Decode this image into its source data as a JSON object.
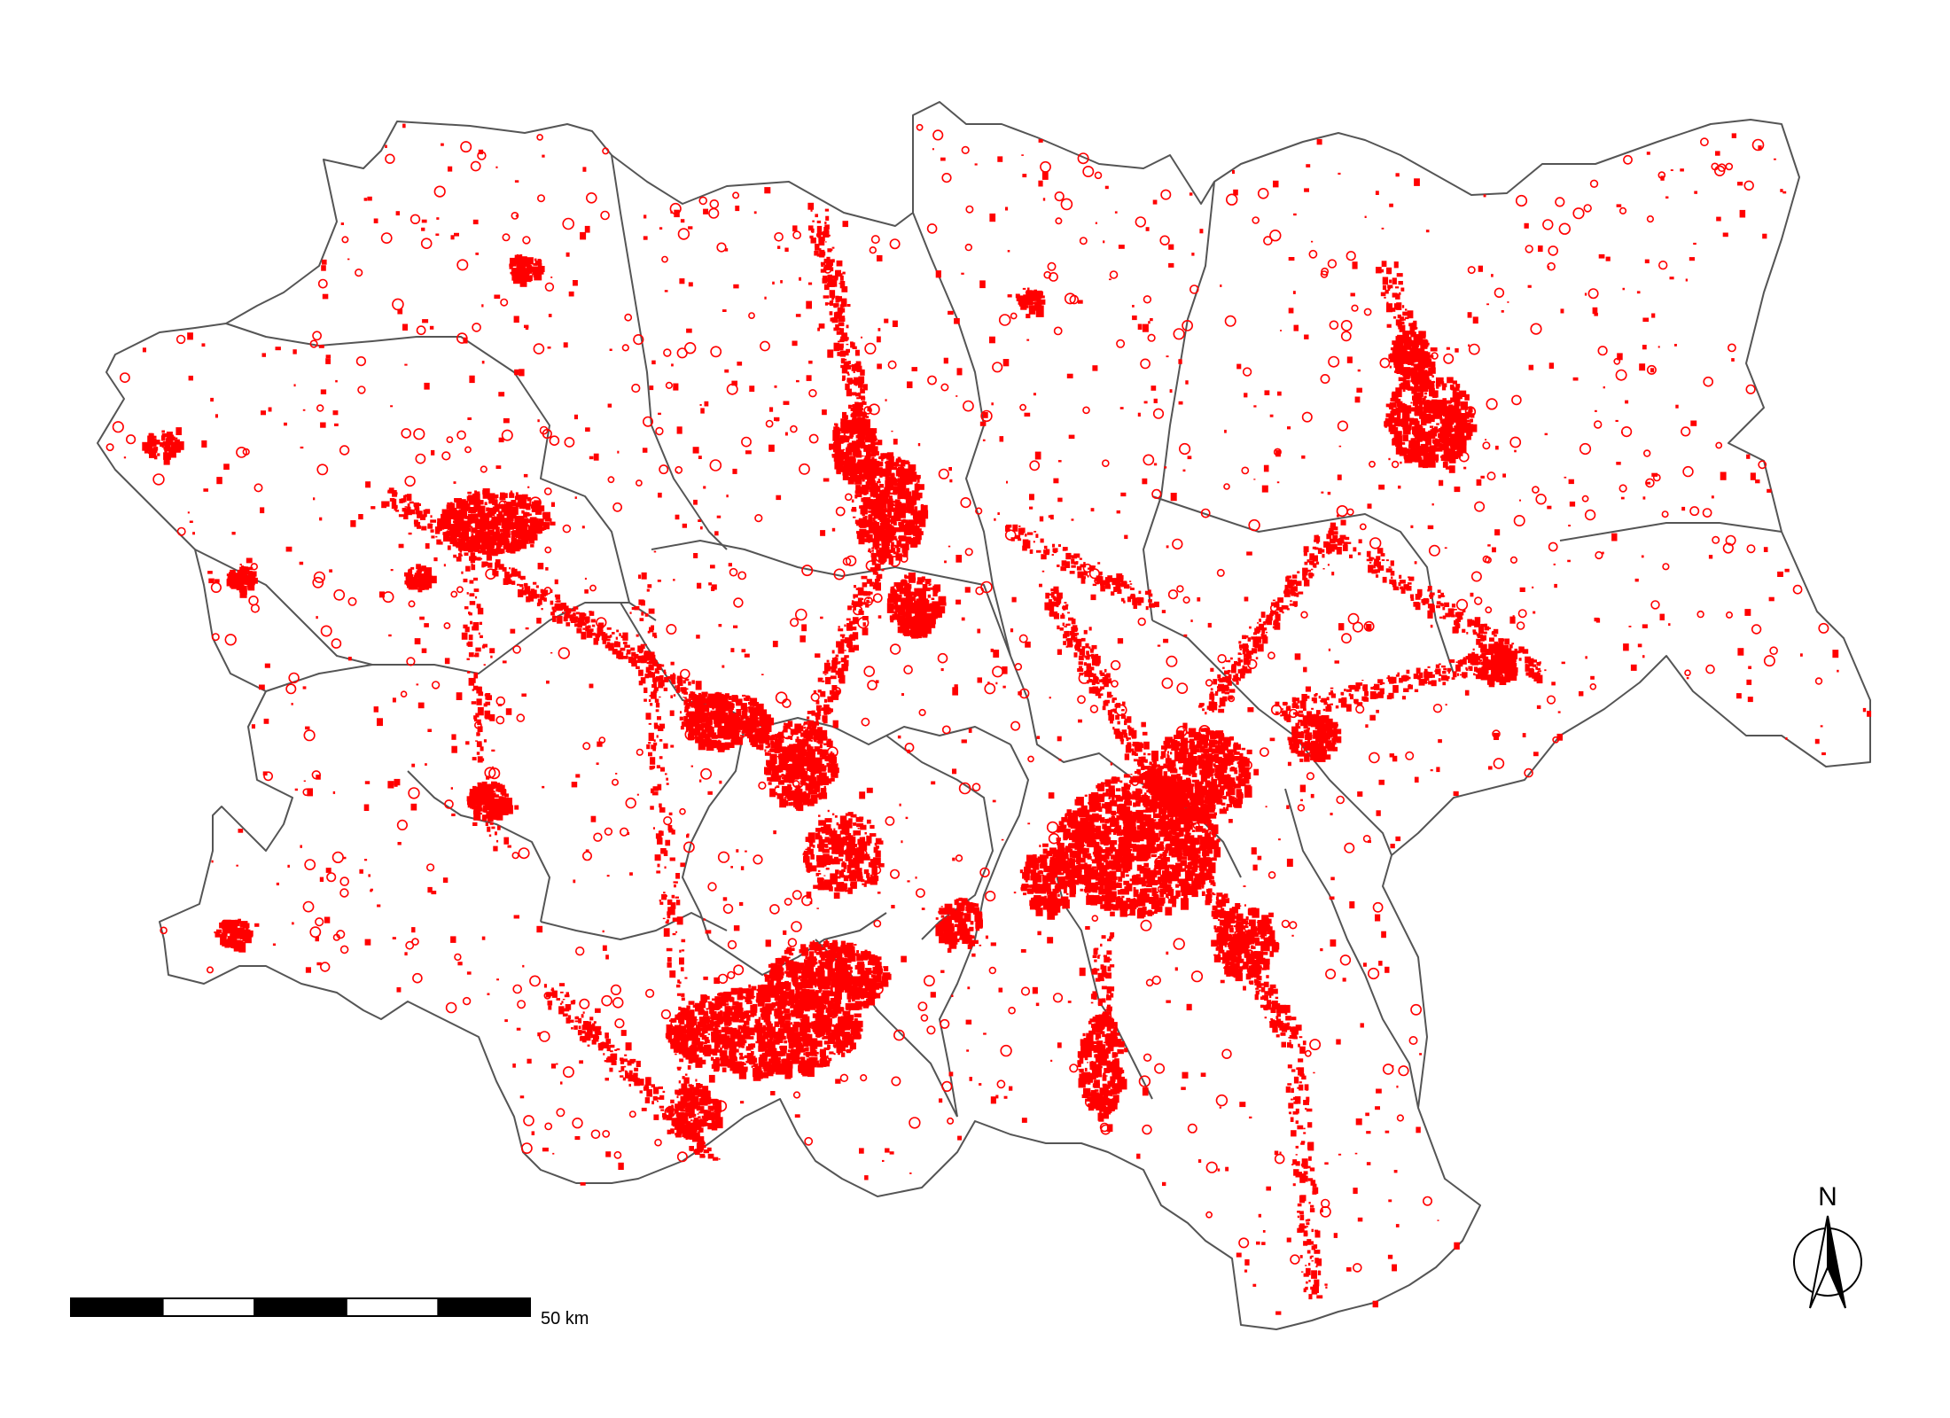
{
  "map": {
    "settlement_color": "#ff0000",
    "boundary_color": "#555555",
    "background_color": "#ffffff"
  },
  "scale_bar": {
    "label": "50 km",
    "segment_colors": [
      "#000000",
      "#ffffff",
      "#000000",
      "#ffffff",
      "#000000"
    ]
  },
  "north_arrow": {
    "label": "N",
    "icon": "north-arrow-icon"
  }
}
